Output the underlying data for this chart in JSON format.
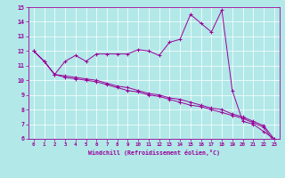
{
  "xlabel": "Windchill (Refroidissement éolien,°C)",
  "background_color": "#b2e8e8",
  "line_color": "#990099",
  "xlim": [
    -0.5,
    23.5
  ],
  "ylim": [
    6,
    15
  ],
  "x": [
    0,
    1,
    2,
    3,
    4,
    5,
    6,
    7,
    8,
    9,
    10,
    11,
    12,
    13,
    14,
    15,
    16,
    17,
    18,
    19,
    20,
    21,
    22,
    23
  ],
  "line1": [
    12.0,
    11.3,
    10.4,
    11.3,
    11.7,
    11.3,
    11.8,
    11.8,
    11.8,
    11.8,
    12.1,
    12.0,
    11.7,
    12.6,
    12.8,
    14.5,
    13.9,
    13.3,
    14.8,
    9.3,
    7.2,
    7.0,
    6.5,
    6.0
  ],
  "line2": [
    12.0,
    11.3,
    10.4,
    10.3,
    10.2,
    10.1,
    10.0,
    9.8,
    9.6,
    9.5,
    9.3,
    9.1,
    9.0,
    8.8,
    8.7,
    8.5,
    8.3,
    8.1,
    8.0,
    7.7,
    7.5,
    7.2,
    6.9,
    6.0
  ],
  "line3": [
    12.0,
    11.3,
    10.4,
    10.2,
    10.1,
    10.0,
    9.9,
    9.7,
    9.5,
    9.3,
    9.2,
    9.0,
    8.9,
    8.7,
    8.5,
    8.3,
    8.2,
    8.0,
    7.8,
    7.6,
    7.4,
    7.1,
    6.8,
    5.8
  ],
  "yticks": [
    6,
    7,
    8,
    9,
    10,
    11,
    12,
    13,
    14,
    15
  ],
  "xticks": [
    0,
    1,
    2,
    3,
    4,
    5,
    6,
    7,
    8,
    9,
    10,
    11,
    12,
    13,
    14,
    15,
    16,
    17,
    18,
    19,
    20,
    21,
    22,
    23
  ]
}
